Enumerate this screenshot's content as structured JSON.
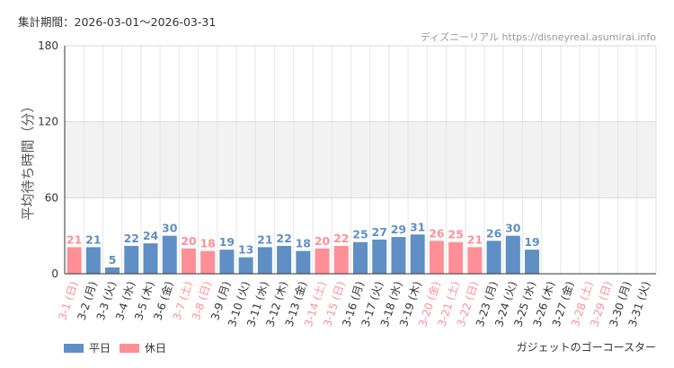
{
  "header": {
    "period_label": "集計期間：2026-03-01～2026-03-31",
    "source_label": "ディズニーリアル https://disneyreal.asumirai.info"
  },
  "footer": {
    "attraction_name": "ガジェットのゴーコースター"
  },
  "colors": {
    "weekday": "#5f8fc4",
    "holiday": "#ff8f97",
    "weekday_text": "#5f8fc4",
    "holiday_text": "#ff8f97",
    "axis_text": "#333333",
    "label_text": "#333333"
  },
  "chart_data": {
    "type": "bar",
    "title": "",
    "xlabel": "",
    "ylabel": "平均待ち時間（分）",
    "ylim": [
      0,
      180
    ],
    "yticks": [
      0,
      60,
      120,
      180
    ],
    "grid": true,
    "legend_position": "bottom-left",
    "categories": [
      "3-1 (日)",
      "3-2 (月)",
      "3-3 (火)",
      "3-4 (水)",
      "3-5 (木)",
      "3-6 (金)",
      "3-7 (土)",
      "3-8 (日)",
      "3-9 (月)",
      "3-10 (火)",
      "3-11 (水)",
      "3-12 (木)",
      "3-13 (金)",
      "3-14 (土)",
      "3-15 (日)",
      "3-16 (月)",
      "3-17 (火)",
      "3-18 (水)",
      "3-19 (木)",
      "3-20 (金)",
      "3-21 (土)",
      "3-22 (日)",
      "3-23 (月)",
      "3-24 (火)",
      "3-25 (水)",
      "3-26 (木)",
      "3-27 (金)",
      "3-28 (土)",
      "3-29 (日)",
      "3-30 (月)",
      "3-31 (火)"
    ],
    "values": [
      21,
      21,
      5,
      22,
      24,
      30,
      20,
      18,
      19,
      13,
      21,
      22,
      18,
      20,
      22,
      25,
      27,
      29,
      31,
      26,
      25,
      21,
      26,
      30,
      19,
      null,
      null,
      null,
      null,
      null,
      null
    ],
    "day_type": [
      "holiday",
      "weekday",
      "weekday",
      "weekday",
      "weekday",
      "weekday",
      "holiday",
      "holiday",
      "weekday",
      "weekday",
      "weekday",
      "weekday",
      "weekday",
      "holiday",
      "holiday",
      "weekday",
      "weekday",
      "weekday",
      "weekday",
      "holiday",
      "holiday",
      "holiday",
      "weekday",
      "weekday",
      "weekday",
      "weekday",
      "weekday",
      "holiday",
      "holiday",
      "weekday",
      "weekday"
    ],
    "series": [
      {
        "name": "平日",
        "color": "#5f8fc4"
      },
      {
        "name": "休日",
        "color": "#ff8f97"
      }
    ]
  }
}
